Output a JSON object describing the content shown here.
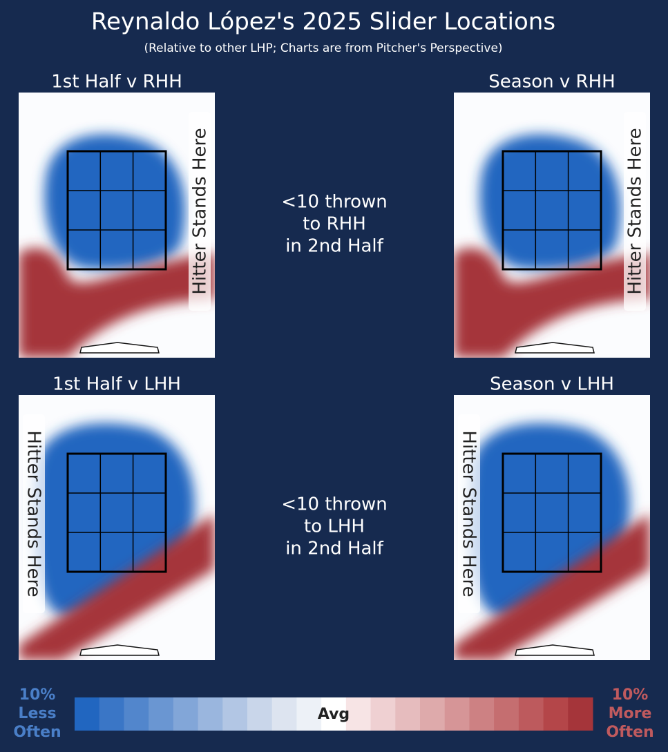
{
  "title": "Reynaldo López's 2025 Slider Locations",
  "subtitle": "(Relative to other LHP; Charts are from Pitcher's Perspective)",
  "panels": [
    {
      "title": "1st Half v RHH",
      "side_label": "Hitter Stands Here"
    },
    {
      "title": "Season v RHH",
      "side_label": "Hitter Stands Here"
    },
    {
      "title": "1st Half v LHH",
      "side_label": "Hitter Stands Here"
    },
    {
      "title": "Season v LHH",
      "side_label": "Hitter Stands Here"
    }
  ],
  "notes": [
    [
      "<10 thrown",
      "to RHH",
      "in 2nd Half"
    ],
    [
      "<10 thrown",
      "to LHH",
      "in 2nd Half"
    ]
  ],
  "legend": {
    "left": [
      "10%",
      "Less",
      "Often"
    ],
    "center": "Avg",
    "right": [
      "10%",
      "More",
      "Often"
    ],
    "colors": [
      "#2166c0",
      "#3a76c6",
      "#5286cc",
      "#6a96d2",
      "#82a6d8",
      "#9ab6de",
      "#b2c6e4",
      "#c9d6ea",
      "#dde4f0",
      "#edf1f7",
      "#ffffff",
      "#f7e4e5",
      "#efd0d2",
      "#e6bcbe",
      "#deaaab",
      "#d69597",
      "#cd8183",
      "#c56e70",
      "#bd5a5d",
      "#b44649",
      "#a5353a"
    ]
  }
}
